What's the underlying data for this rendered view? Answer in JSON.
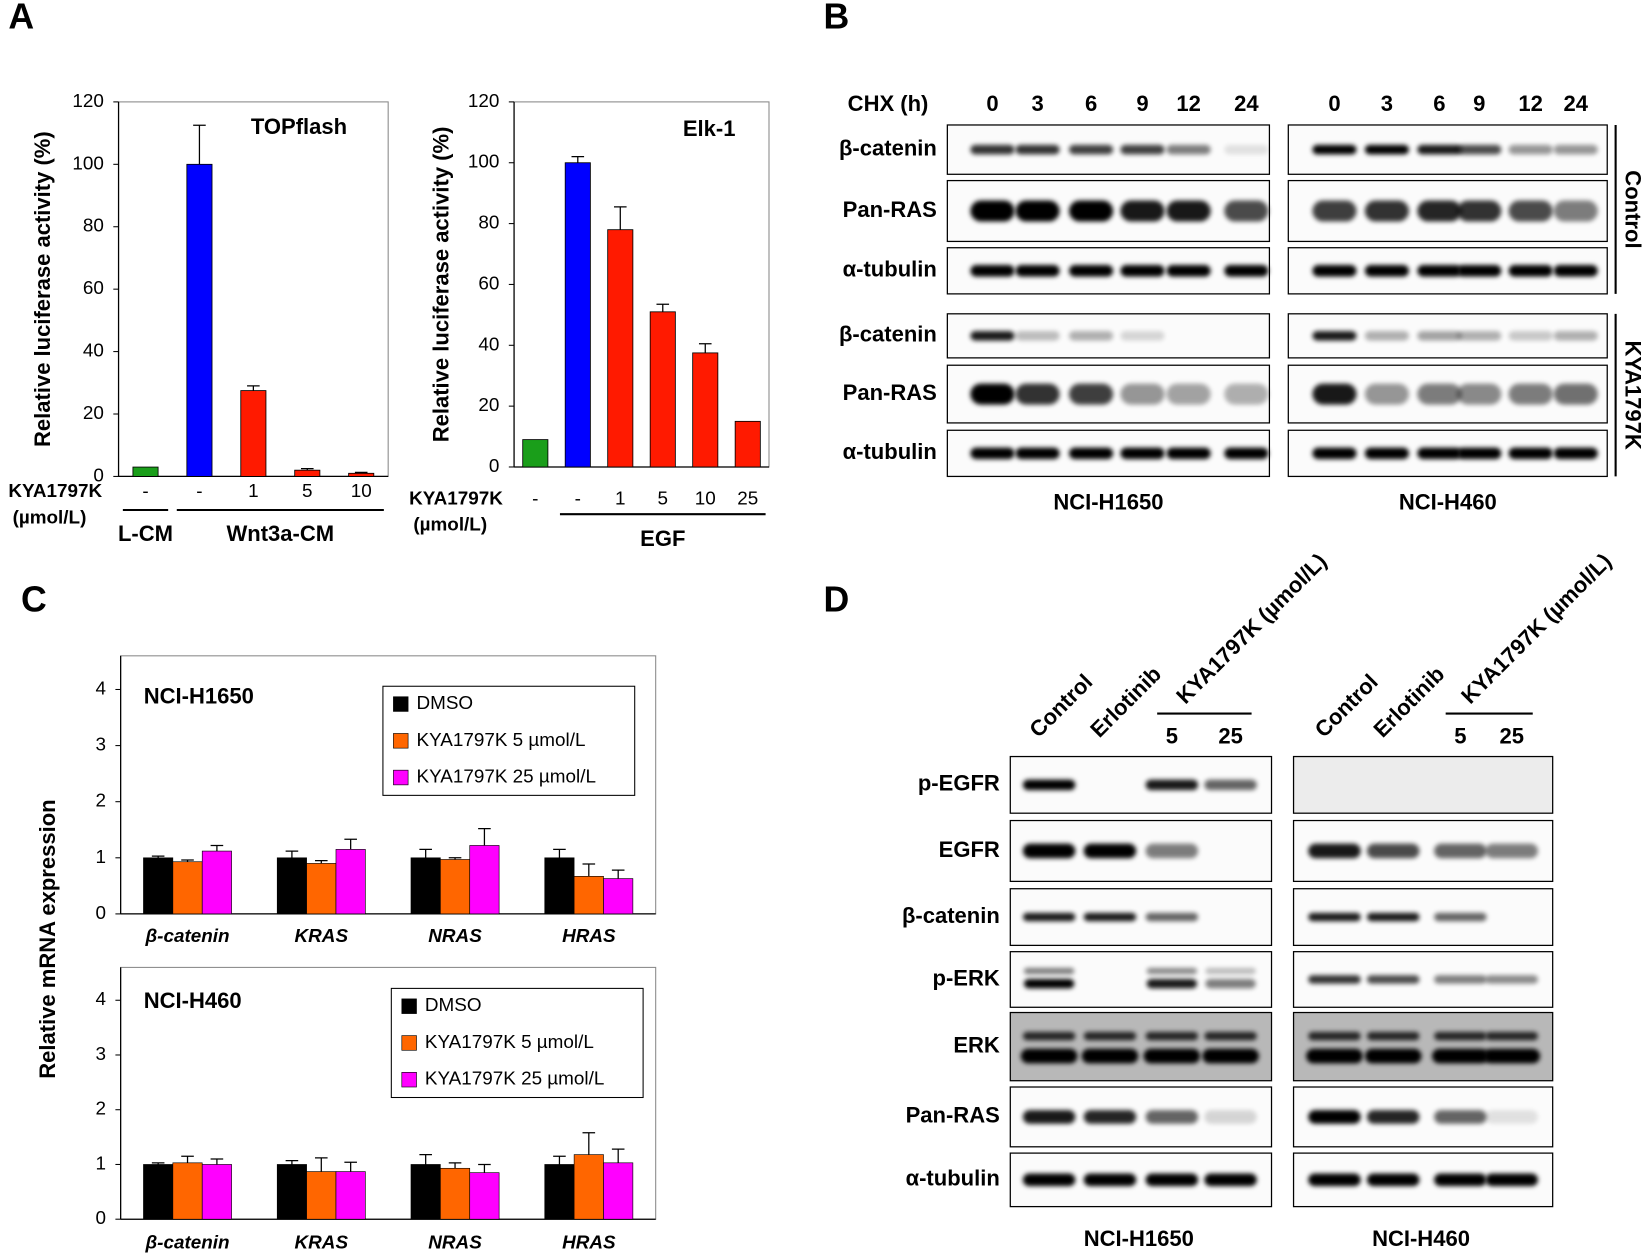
{
  "panel_labels": [
    "A",
    "B",
    "C",
    "D"
  ],
  "chart_data": [
    {
      "type": "bar",
      "title": "TOPflash",
      "ylabel": "Relative luciferase activity (%)",
      "categories": [
        "-",
        "-",
        "1",
        "5",
        "10"
      ],
      "values": [
        3,
        100,
        27.5,
        2,
        1
      ],
      "errors": [
        null,
        12.5,
        1.5,
        0.5,
        0.3
      ],
      "colors": [
        "#1a9e1a",
        "#0000ff",
        "#ff1a00",
        "#ff1a00",
        "#ff1a00"
      ],
      "ylim": [
        0,
        120
      ],
      "yticks": [
        0,
        20,
        40,
        60,
        80,
        100,
        120
      ],
      "row_label": "KYA1797K",
      "row_unit": "(µmol/L)",
      "groups": [
        {
          "label": "L-CM",
          "span": [
            0,
            0
          ]
        },
        {
          "label": "Wnt3a-CM",
          "span": [
            1,
            4
          ]
        }
      ]
    },
    {
      "type": "bar",
      "title": "Elk-1",
      "ylabel": "Relative luciferase activity (%)",
      "categories": [
        "-",
        "-",
        "1",
        "5",
        "10",
        "25"
      ],
      "values": [
        9,
        100,
        78,
        51,
        37.5,
        15
      ],
      "errors": [
        null,
        2,
        7.5,
        2.5,
        3,
        null
      ],
      "colors": [
        "#1a9e1a",
        "#0000ff",
        "#ff1a00",
        "#ff1a00",
        "#ff1a00",
        "#ff1a00"
      ],
      "ylim": [
        0,
        120
      ],
      "yticks": [
        0,
        20,
        40,
        60,
        80,
        100,
        120
      ],
      "row_label": "KYA1797K",
      "row_unit": "(µmol/L)",
      "groups": [
        {
          "label": "EGF",
          "span": [
            1,
            5
          ]
        }
      ]
    },
    {
      "type": "grouped-bar",
      "title": "NCI-H1650",
      "categories": [
        "β-catenin",
        "KRAS",
        "NRAS",
        "HRAS"
      ],
      "series": [
        {
          "name": "DMSO",
          "color": "#000000",
          "values": [
            1,
            1,
            1,
            1
          ],
          "errors": [
            0.03,
            0.12,
            0.15,
            0.15
          ]
        },
        {
          "name": "KYA1797K  5 µmol/L",
          "color": "#ff6600",
          "values": [
            0.93,
            0.9,
            0.97,
            0.67
          ],
          "errors": [
            0.03,
            0.05,
            0.03,
            0.22
          ]
        },
        {
          "name": "KYA1797K  25 µmol/L",
          "color": "#ff00ff",
          "values": [
            1.12,
            1.15,
            1.22,
            0.63
          ],
          "errors": [
            0.1,
            0.18,
            0.3,
            0.15
          ]
        }
      ],
      "ylim": [
        0,
        4.6
      ],
      "yticks": [
        0,
        1,
        2,
        3,
        4
      ]
    },
    {
      "type": "grouped-bar",
      "title": "NCI-H460",
      "categories": [
        "β-catenin",
        "KRAS",
        "NRAS",
        "HRAS"
      ],
      "series": [
        {
          "name": "DMSO",
          "color": "#000000",
          "values": [
            1,
            1,
            1,
            1
          ],
          "errors": [
            0.03,
            0.07,
            0.18,
            0.15
          ]
        },
        {
          "name": "KYA1797K  5 µmol/L",
          "color": "#ff6600",
          "values": [
            1.03,
            0.87,
            0.93,
            1.18
          ],
          "errors": [
            0.12,
            0.25,
            0.1,
            0.4
          ]
        },
        {
          "name": "KYA1797K  25 µmol/L",
          "color": "#ff00ff",
          "values": [
            1.0,
            0.87,
            0.85,
            1.03
          ],
          "errors": [
            0.1,
            0.17,
            0.15,
            0.25
          ]
        }
      ],
      "ylim": [
        0,
        4.6
      ],
      "yticks": [
        0,
        1,
        2,
        3,
        4
      ]
    }
  ],
  "panel_c_ylabel": "Relative mRNA expression",
  "blot_b": {
    "time_label": "CHX (h)",
    "times": [
      "0",
      "3",
      "6",
      "9",
      "12",
      "24"
    ],
    "proteins": [
      "β-catenin",
      "Pan-RAS",
      "α-tubulin"
    ],
    "treatments": [
      "Control",
      "KYA1797K"
    ],
    "cell_lines": [
      "NCI-H1650",
      "NCI-H460"
    ]
  },
  "blot_d": {
    "lanes": [
      "Control",
      "Erlotinib"
    ],
    "treatment": "KYA1797K (µmol/L)",
    "doses": [
      "5",
      "25"
    ],
    "proteins": [
      "p-EGFR",
      "EGFR",
      "β-catenin",
      "p-ERK",
      "ERK",
      "Pan-RAS",
      "α-tubulin"
    ],
    "cell_lines": [
      "NCI-H1650",
      "NCI-H460"
    ]
  }
}
